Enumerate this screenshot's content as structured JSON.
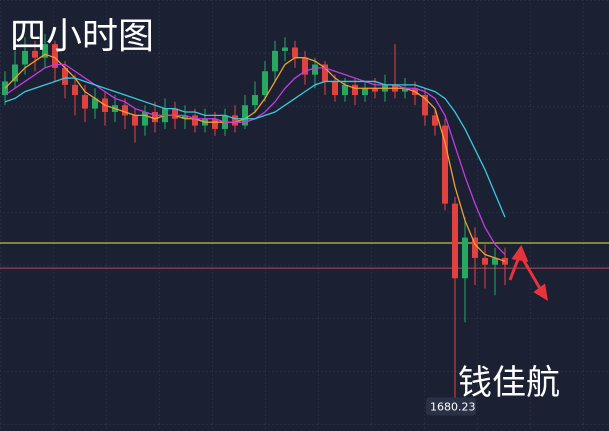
{
  "chart_data": {
    "type": "candlestick",
    "title": "四小时图",
    "author": "钱佳航",
    "price_label": 1680.23,
    "ylim": [
      1673,
      1800
    ],
    "up_color": "#26a85f",
    "down_color": "#e0433f",
    "open": [
      1772,
      1776,
      1781,
      1785,
      1783,
      1787,
      1780,
      1775,
      1772,
      1768,
      1771,
      1767,
      1769,
      1766,
      1763,
      1767,
      1764,
      1768,
      1765,
      1766,
      1763,
      1765,
      1762,
      1766,
      1763,
      1769,
      1772,
      1779,
      1785,
      1786,
      1783,
      1778,
      1781,
      1776,
      1772,
      1775,
      1772,
      1774,
      1773,
      1775,
      1773,
      1774,
      1772,
      1766,
      1763,
      1740,
      1718,
      1730,
      1724,
      1722,
      1724
    ],
    "high": [
      1779,
      1785,
      1789,
      1788,
      1790,
      1788,
      1782,
      1778,
      1775,
      1774,
      1773,
      1772,
      1771,
      1768,
      1769,
      1770,
      1771,
      1770,
      1769,
      1768,
      1768,
      1767,
      1768,
      1769,
      1772,
      1776,
      1782,
      1788,
      1789,
      1788,
      1785,
      1783,
      1782,
      1778,
      1777,
      1777,
      1776,
      1777,
      1778,
      1787,
      1777,
      1776,
      1774,
      1768,
      1765,
      1742,
      1736,
      1733,
      1728,
      1727,
      1727
    ],
    "low": [
      1769,
      1774,
      1778,
      1779,
      1780,
      1776,
      1771,
      1766,
      1764,
      1765,
      1763,
      1764,
      1762,
      1758,
      1760,
      1761,
      1762,
      1762,
      1762,
      1761,
      1761,
      1760,
      1760,
      1761,
      1762,
      1767,
      1770,
      1776,
      1782,
      1780,
      1775,
      1774,
      1772,
      1770,
      1770,
      1769,
      1770,
      1771,
      1770,
      1771,
      1771,
      1769,
      1763,
      1760,
      1738,
      1680,
      1705,
      1716,
      1715,
      1713,
      1716
    ],
    "close": [
      1776,
      1781,
      1785,
      1783,
      1787,
      1780,
      1775,
      1772,
      1768,
      1771,
      1767,
      1769,
      1766,
      1763,
      1767,
      1764,
      1768,
      1765,
      1766,
      1763,
      1765,
      1762,
      1766,
      1763,
      1769,
      1772,
      1779,
      1785,
      1786,
      1783,
      1778,
      1781,
      1776,
      1772,
      1775,
      1772,
      1774,
      1773,
      1775,
      1773,
      1774,
      1772,
      1766,
      1763,
      1740,
      1718,
      1730,
      1724,
      1722,
      1724,
      1722
    ],
    "ma": [
      {
        "color": "#f0a030",
        "values": [
          1774,
          1777,
          1780,
          1782,
          1784,
          1783,
          1780,
          1777,
          1773,
          1771,
          1769,
          1768,
          1767,
          1766,
          1766,
          1765,
          1766,
          1766,
          1765,
          1765,
          1764,
          1764,
          1764,
          1764,
          1765,
          1767,
          1771,
          1776,
          1781,
          1783,
          1783,
          1782,
          1780,
          1777,
          1775,
          1774,
          1774,
          1774,
          1774,
          1774,
          1774,
          1773,
          1771,
          1768,
          1758,
          1745,
          1735,
          1728,
          1725,
          1724,
          1723
        ]
      },
      {
        "color": "#c43be0",
        "values": [
          1772,
          1774,
          1776,
          1778,
          1780,
          1781,
          1781,
          1779,
          1777,
          1775,
          1773,
          1771,
          1770,
          1768,
          1767,
          1766,
          1766,
          1766,
          1766,
          1765,
          1765,
          1765,
          1764,
          1764,
          1764,
          1765,
          1767,
          1770,
          1774,
          1777,
          1779,
          1780,
          1780,
          1779,
          1778,
          1777,
          1776,
          1775,
          1775,
          1775,
          1774,
          1774,
          1773,
          1771,
          1766,
          1757,
          1748,
          1740,
          1733,
          1728,
          1725
        ]
      },
      {
        "color": "#3cc8dc",
        "values": [
          1770,
          1771,
          1773,
          1774,
          1775,
          1776,
          1777,
          1777,
          1776,
          1775,
          1774,
          1773,
          1772,
          1771,
          1770,
          1769,
          1768,
          1768,
          1767,
          1767,
          1766,
          1766,
          1766,
          1765,
          1765,
          1765,
          1766,
          1767,
          1769,
          1771,
          1773,
          1775,
          1776,
          1776,
          1776,
          1776,
          1776,
          1776,
          1775,
          1775,
          1775,
          1775,
          1774,
          1773,
          1771,
          1767,
          1762,
          1756,
          1750,
          1743,
          1736
        ]
      }
    ],
    "levels": [
      {
        "value": 1728.4,
        "color": "#e8e84a"
      },
      {
        "value": 1721,
        "color": "#b04a60"
      }
    ]
  }
}
